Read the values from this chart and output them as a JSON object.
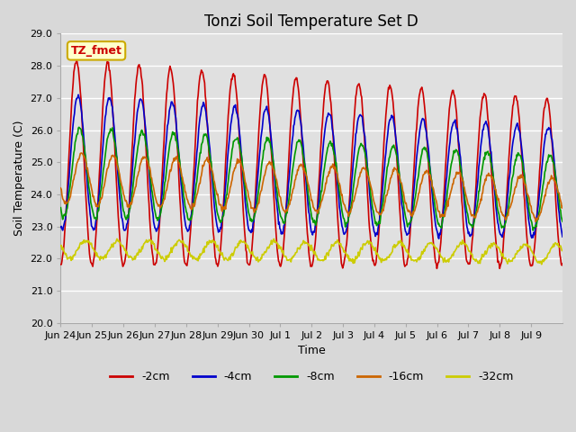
{
  "title": "Tonzi Soil Temperature Set D",
  "xlabel": "Time",
  "ylabel": "Soil Temperature (C)",
  "ylim": [
    20.0,
    29.0
  ],
  "yticks": [
    20.0,
    21.0,
    22.0,
    23.0,
    24.0,
    25.0,
    26.0,
    27.0,
    28.0,
    29.0
  ],
  "xtick_labels": [
    "Jun 24",
    "Jun 25",
    "Jun 26",
    "Jun 27",
    "Jun 28",
    "Jun 29",
    "Jun 30",
    "Jul 1",
    "Jul 2",
    "Jul 3",
    "Jul 4",
    "Jul 5",
    "Jul 6",
    "Jul 7",
    "Jul 8",
    "Jul 9"
  ],
  "colors": {
    "-2cm": "#cc0000",
    "-4cm": "#0000cc",
    "-8cm": "#009900",
    "-16cm": "#cc6600",
    "-32cm": "#cccc00"
  },
  "legend_labels": [
    "-2cm",
    "-4cm",
    "-8cm",
    "-16cm",
    "-32cm"
  ],
  "annotation_text": "TZ_fmet",
  "annotation_bg": "#ffffcc",
  "annotation_border": "#ccaa00",
  "fig_bg": "#d8d8d8",
  "plot_bg": "#e0e0e0",
  "grid_color": "#ffffff",
  "title_fontsize": 12,
  "label_fontsize": 9,
  "tick_fontsize": 8
}
